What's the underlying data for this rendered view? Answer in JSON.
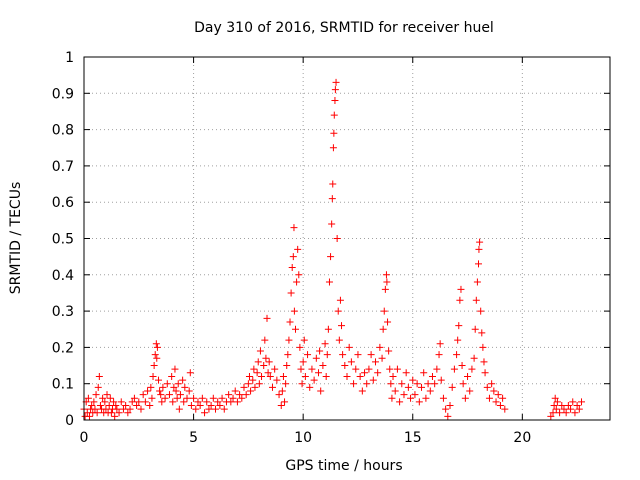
{
  "chart_data": {
    "type": "scatter",
    "title": "Day 310 of 2016, SRMTID for receiver huel",
    "xlabel": "GPS time / hours",
    "ylabel": "SRMTID / TECUs",
    "xlim": [
      0,
      24
    ],
    "ylim": [
      0,
      1
    ],
    "xticks": [
      0,
      5,
      10,
      15,
      20
    ],
    "xtick_labels": [
      "0",
      "5",
      "10",
      "15",
      "20"
    ],
    "yticks": [
      0,
      0.1,
      0.2,
      0.3,
      0.4,
      0.5,
      0.6,
      0.7,
      0.8,
      0.9,
      1
    ],
    "ytick_labels": [
      "0",
      "0.1",
      "0.2",
      "0.3",
      "0.4",
      "0.5",
      "0.6",
      "0.7",
      "0.8",
      "0.9",
      "1"
    ],
    "grid": true,
    "marker": "+",
    "series": [
      {
        "name": "huel",
        "color": "#ff0000",
        "points": [
          [
            0.0,
            0.03
          ],
          [
            0.05,
            0.01
          ],
          [
            0.1,
            0.05
          ],
          [
            0.15,
            0.02
          ],
          [
            0.2,
            0.06
          ],
          [
            0.25,
            0.01
          ],
          [
            0.3,
            0.03
          ],
          [
            0.35,
            0.04
          ],
          [
            0.4,
            0.02
          ],
          [
            0.45,
            0.05
          ],
          [
            0.5,
            0.03
          ],
          [
            0.55,
            0.07
          ],
          [
            0.6,
            0.02
          ],
          [
            0.65,
            0.09
          ],
          [
            0.7,
            0.12
          ],
          [
            0.75,
            0.04
          ],
          [
            0.8,
            0.03
          ],
          [
            0.85,
            0.06
          ],
          [
            0.9,
            0.02
          ],
          [
            0.95,
            0.05
          ],
          [
            1.0,
            0.03
          ],
          [
            1.05,
            0.07
          ],
          [
            1.1,
            0.02
          ],
          [
            1.15,
            0.04
          ],
          [
            1.2,
            0.06
          ],
          [
            1.25,
            0.02
          ],
          [
            1.3,
            0.03
          ],
          [
            1.35,
            0.05
          ],
          [
            1.4,
            0.01
          ],
          [
            1.45,
            0.04
          ],
          [
            1.5,
            0.03
          ],
          [
            1.6,
            0.02
          ],
          [
            1.7,
            0.05
          ],
          [
            1.8,
            0.03
          ],
          [
            1.9,
            0.04
          ],
          [
            2.0,
            0.02
          ],
          [
            2.1,
            0.03
          ],
          [
            2.2,
            0.05
          ],
          [
            2.3,
            0.06
          ],
          [
            2.4,
            0.04
          ],
          [
            2.5,
            0.05
          ],
          [
            2.6,
            0.03
          ],
          [
            2.7,
            0.07
          ],
          [
            2.8,
            0.05
          ],
          [
            2.9,
            0.08
          ],
          [
            3.0,
            0.04
          ],
          [
            3.05,
            0.09
          ],
          [
            3.1,
            0.06
          ],
          [
            3.15,
            0.12
          ],
          [
            3.2,
            0.15
          ],
          [
            3.25,
            0.18
          ],
          [
            3.3,
            0.21
          ],
          [
            3.32,
            0.17
          ],
          [
            3.35,
            0.2
          ],
          [
            3.4,
            0.11
          ],
          [
            3.45,
            0.08
          ],
          [
            3.5,
            0.07
          ],
          [
            3.55,
            0.05
          ],
          [
            3.6,
            0.09
          ],
          [
            3.7,
            0.06
          ],
          [
            3.8,
            0.1
          ],
          [
            3.9,
            0.07
          ],
          [
            4.0,
            0.12
          ],
          [
            4.05,
            0.05
          ],
          [
            4.1,
            0.09
          ],
          [
            4.15,
            0.14
          ],
          [
            4.2,
            0.08
          ],
          [
            4.25,
            0.06
          ],
          [
            4.3,
            0.1
          ],
          [
            4.35,
            0.03
          ],
          [
            4.4,
            0.07
          ],
          [
            4.5,
            0.11
          ],
          [
            4.55,
            0.05
          ],
          [
            4.6,
            0.09
          ],
          [
            4.7,
            0.06
          ],
          [
            4.8,
            0.08
          ],
          [
            4.85,
            0.13
          ],
          [
            4.9,
            0.04
          ],
          [
            5.0,
            0.06
          ],
          [
            5.1,
            0.03
          ],
          [
            5.2,
            0.05
          ],
          [
            5.3,
            0.04
          ],
          [
            5.4,
            0.06
          ],
          [
            5.5,
            0.02
          ],
          [
            5.6,
            0.05
          ],
          [
            5.7,
            0.03
          ],
          [
            5.8,
            0.04
          ],
          [
            5.9,
            0.06
          ],
          [
            6.0,
            0.03
          ],
          [
            6.1,
            0.05
          ],
          [
            6.2,
            0.04
          ],
          [
            6.3,
            0.06
          ],
          [
            6.4,
            0.03
          ],
          [
            6.5,
            0.05
          ],
          [
            6.6,
            0.07
          ],
          [
            6.7,
            0.05
          ],
          [
            6.8,
            0.06
          ],
          [
            6.9,
            0.08
          ],
          [
            7.0,
            0.05
          ],
          [
            7.1,
            0.07
          ],
          [
            7.2,
            0.06
          ],
          [
            7.3,
            0.09
          ],
          [
            7.4,
            0.07
          ],
          [
            7.5,
            0.1
          ],
          [
            7.55,
            0.12
          ],
          [
            7.6,
            0.08
          ],
          [
            7.7,
            0.11
          ],
          [
            7.75,
            0.14
          ],
          [
            7.8,
            0.09
          ],
          [
            7.9,
            0.13
          ],
          [
            7.95,
            0.16
          ],
          [
            8.0,
            0.1
          ],
          [
            8.05,
            0.19
          ],
          [
            8.1,
            0.12
          ],
          [
            8.2,
            0.15
          ],
          [
            8.25,
            0.22
          ],
          [
            8.3,
            0.17
          ],
          [
            8.35,
            0.28
          ],
          [
            8.4,
            0.13
          ],
          [
            8.45,
            0.16
          ],
          [
            8.5,
            0.12
          ],
          [
            8.6,
            0.09
          ],
          [
            8.7,
            0.14
          ],
          [
            8.8,
            0.11
          ],
          [
            8.9,
            0.07
          ],
          [
            9.0,
            0.04
          ],
          [
            9.05,
            0.08
          ],
          [
            9.1,
            0.12
          ],
          [
            9.15,
            0.05
          ],
          [
            9.2,
            0.1
          ],
          [
            9.25,
            0.15
          ],
          [
            9.3,
            0.18
          ],
          [
            9.35,
            0.22
          ],
          [
            9.4,
            0.27
          ],
          [
            9.45,
            0.35
          ],
          [
            9.5,
            0.42
          ],
          [
            9.55,
            0.45
          ],
          [
            9.58,
            0.53
          ],
          [
            9.6,
            0.3
          ],
          [
            9.65,
            0.25
          ],
          [
            9.7,
            0.38
          ],
          [
            9.75,
            0.47
          ],
          [
            9.8,
            0.4
          ],
          [
            9.85,
            0.2
          ],
          [
            9.9,
            0.14
          ],
          [
            9.95,
            0.1
          ],
          [
            10.0,
            0.16
          ],
          [
            10.05,
            0.22
          ],
          [
            10.1,
            0.12
          ],
          [
            10.2,
            0.18
          ],
          [
            10.3,
            0.09
          ],
          [
            10.4,
            0.14
          ],
          [
            10.5,
            0.11
          ],
          [
            10.6,
            0.17
          ],
          [
            10.7,
            0.13
          ],
          [
            10.75,
            0.19
          ],
          [
            10.8,
            0.08
          ],
          [
            10.9,
            0.15
          ],
          [
            11.0,
            0.21
          ],
          [
            11.05,
            0.12
          ],
          [
            11.1,
            0.18
          ],
          [
            11.15,
            0.25
          ],
          [
            11.2,
            0.38
          ],
          [
            11.25,
            0.45
          ],
          [
            11.3,
            0.54
          ],
          [
            11.33,
            0.61
          ],
          [
            11.35,
            0.65
          ],
          [
            11.38,
            0.75
          ],
          [
            11.4,
            0.79
          ],
          [
            11.42,
            0.84
          ],
          [
            11.45,
            0.88
          ],
          [
            11.47,
            0.91
          ],
          [
            11.5,
            0.93
          ],
          [
            11.55,
            0.5
          ],
          [
            11.6,
            0.3
          ],
          [
            11.65,
            0.22
          ],
          [
            11.7,
            0.33
          ],
          [
            11.75,
            0.26
          ],
          [
            11.8,
            0.18
          ],
          [
            11.9,
            0.15
          ],
          [
            12.0,
            0.12
          ],
          [
            12.1,
            0.2
          ],
          [
            12.2,
            0.16
          ],
          [
            12.3,
            0.1
          ],
          [
            12.4,
            0.14
          ],
          [
            12.5,
            0.18
          ],
          [
            12.6,
            0.12
          ],
          [
            12.7,
            0.08
          ],
          [
            12.8,
            0.13
          ],
          [
            12.9,
            0.1
          ],
          [
            13.0,
            0.14
          ],
          [
            13.1,
            0.18
          ],
          [
            13.2,
            0.11
          ],
          [
            13.3,
            0.16
          ],
          [
            13.4,
            0.13
          ],
          [
            13.5,
            0.2
          ],
          [
            13.6,
            0.17
          ],
          [
            13.65,
            0.25
          ],
          [
            13.7,
            0.3
          ],
          [
            13.75,
            0.36
          ],
          [
            13.8,
            0.4
          ],
          [
            13.82,
            0.38
          ],
          [
            13.85,
            0.27
          ],
          [
            13.9,
            0.19
          ],
          [
            13.95,
            0.14
          ],
          [
            14.0,
            0.1
          ],
          [
            14.05,
            0.06
          ],
          [
            14.1,
            0.12
          ],
          [
            14.2,
            0.08
          ],
          [
            14.3,
            0.14
          ],
          [
            14.4,
            0.05
          ],
          [
            14.5,
            0.1
          ],
          [
            14.6,
            0.07
          ],
          [
            14.7,
            0.13
          ],
          [
            14.8,
            0.09
          ],
          [
            14.9,
            0.06
          ],
          [
            15.0,
            0.11
          ],
          [
            15.1,
            0.07
          ],
          [
            15.2,
            0.1
          ],
          [
            15.3,
            0.05
          ],
          [
            15.4,
            0.09
          ],
          [
            15.5,
            0.13
          ],
          [
            15.6,
            0.06
          ],
          [
            15.7,
            0.1
          ],
          [
            15.8,
            0.08
          ],
          [
            15.9,
            0.12
          ],
          [
            16.0,
            0.1
          ],
          [
            16.1,
            0.14
          ],
          [
            16.2,
            0.18
          ],
          [
            16.25,
            0.21
          ],
          [
            16.3,
            0.11
          ],
          [
            16.4,
            0.06
          ],
          [
            16.5,
            0.03
          ],
          [
            16.6,
            0.01
          ],
          [
            16.7,
            0.04
          ],
          [
            16.8,
            0.09
          ],
          [
            16.9,
            0.14
          ],
          [
            17.0,
            0.18
          ],
          [
            17.05,
            0.22
          ],
          [
            17.1,
            0.26
          ],
          [
            17.15,
            0.33
          ],
          [
            17.2,
            0.36
          ],
          [
            17.25,
            0.15
          ],
          [
            17.3,
            0.1
          ],
          [
            17.4,
            0.06
          ],
          [
            17.5,
            0.12
          ],
          [
            17.6,
            0.08
          ],
          [
            17.7,
            0.14
          ],
          [
            17.8,
            0.17
          ],
          [
            17.85,
            0.25
          ],
          [
            17.9,
            0.33
          ],
          [
            17.95,
            0.38
          ],
          [
            18.0,
            0.43
          ],
          [
            18.02,
            0.47
          ],
          [
            18.05,
            0.49
          ],
          [
            18.1,
            0.3
          ],
          [
            18.15,
            0.24
          ],
          [
            18.2,
            0.2
          ],
          [
            18.25,
            0.16
          ],
          [
            18.3,
            0.13
          ],
          [
            18.4,
            0.09
          ],
          [
            18.5,
            0.06
          ],
          [
            18.6,
            0.1
          ],
          [
            18.7,
            0.08
          ],
          [
            18.8,
            0.05
          ],
          [
            18.9,
            0.07
          ],
          [
            19.0,
            0.04
          ],
          [
            19.1,
            0.06
          ],
          [
            19.2,
            0.03
          ],
          [
            21.3,
            0.01
          ],
          [
            21.4,
            0.02
          ],
          [
            21.45,
            0.04
          ],
          [
            21.5,
            0.06
          ],
          [
            21.55,
            0.03
          ],
          [
            21.6,
            0.05
          ],
          [
            21.7,
            0.02
          ],
          [
            21.8,
            0.04
          ],
          [
            21.9,
            0.03
          ],
          [
            22.0,
            0.02
          ],
          [
            22.1,
            0.04
          ],
          [
            22.2,
            0.03
          ],
          [
            22.3,
            0.05
          ],
          [
            22.4,
            0.02
          ],
          [
            22.5,
            0.04
          ],
          [
            22.6,
            0.03
          ],
          [
            22.7,
            0.05
          ]
        ]
      }
    ]
  }
}
